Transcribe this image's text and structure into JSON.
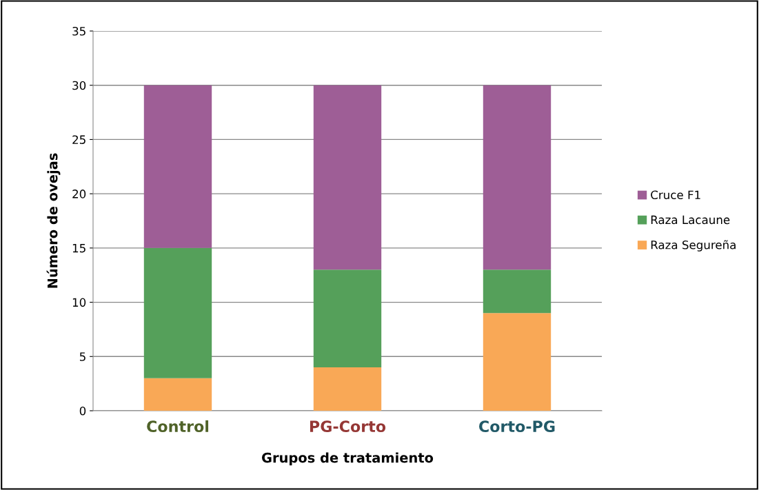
{
  "chart_data": {
    "type": "bar",
    "stacked": true,
    "xlabel": "Grupos de tratamiento",
    "ylabel": "Número de ovejas",
    "categories": [
      "Control",
      "PG-Corto",
      "Corto-PG"
    ],
    "series": [
      {
        "name": "Raza Segureña",
        "color": "#f9a856",
        "values": [
          3,
          4,
          9
        ]
      },
      {
        "name": "Raza Lacaune",
        "color": "#55a05a",
        "values": [
          12,
          9,
          4
        ]
      },
      {
        "name": "Cruce F1",
        "color": "#9e5e96",
        "values": [
          15,
          17,
          17
        ]
      }
    ],
    "ylim": [
      0,
      35
    ],
    "yticks": [
      0,
      5,
      10,
      15,
      20,
      25,
      30,
      35
    ],
    "grid": "y",
    "legend": "right"
  }
}
